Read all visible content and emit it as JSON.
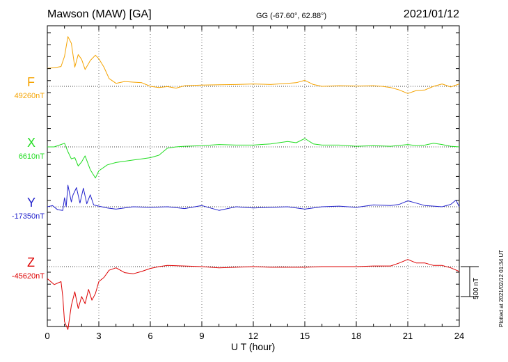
{
  "header": {
    "station": "Mawson (MAW)  [GA]",
    "coords": "GG (-67.60°,  62.88°)",
    "date": "2021/01/12"
  },
  "xlabel": "U T (hour)",
  "scale_label": "500 nT",
  "plotted_note": "Plotted at 2021/02/12 01:34 UT",
  "chart_data": {
    "type": "line",
    "title": "Mawson (MAW)  [GA]",
    "xlabel": "U T (hour)",
    "ylabel": "",
    "xlim": [
      0,
      24
    ],
    "xticks": [
      0,
      3,
      6,
      9,
      12,
      15,
      18,
      21,
      24
    ],
    "grid": true,
    "scale_bar_nT": 500,
    "series": [
      {
        "name": "F",
        "baseline_label": "49260nT",
        "color": "#f5a300",
        "x": [
          0,
          0.4,
          0.8,
          1.0,
          1.2,
          1.4,
          1.6,
          1.8,
          2.0,
          2.2,
          2.5,
          2.8,
          3.0,
          3.3,
          3.6,
          4.0,
          4.5,
          5.0,
          5.5,
          6.0,
          6.5,
          7.0,
          7.5,
          8.0,
          9.0,
          10.0,
          11.0,
          12.0,
          13.0,
          14.0,
          14.5,
          15.0,
          15.5,
          16.0,
          17.0,
          18.0,
          19.0,
          19.5,
          20.0,
          20.5,
          21.0,
          21.5,
          22.0,
          22.5,
          23.0,
          23.5,
          24.0
        ],
        "values": [
          300,
          310,
          330,
          500,
          830,
          720,
          320,
          530,
          450,
          280,
          430,
          520,
          460,
          320,
          130,
          50,
          80,
          70,
          60,
          0,
          -20,
          -5,
          -30,
          10,
          20,
          25,
          30,
          40,
          30,
          50,
          60,
          100,
          30,
          0,
          10,
          5,
          10,
          0,
          -20,
          -60,
          -120,
          -70,
          -60,
          0,
          40,
          -10,
          40
        ]
      },
      {
        "name": "X",
        "baseline_label": "6610nT",
        "color": "#22dd22",
        "x": [
          0,
          0.4,
          0.8,
          1.0,
          1.2,
          1.4,
          1.6,
          1.8,
          2.0,
          2.2,
          2.5,
          2.8,
          3.0,
          3.5,
          4.0,
          4.5,
          5.0,
          5.5,
          6.0,
          6.5,
          7.0,
          7.5,
          8.0,
          9.0,
          10.0,
          11.0,
          12.0,
          13.0,
          14.0,
          14.5,
          15.0,
          15.5,
          16.0,
          17.0,
          18.0,
          19.0,
          20.0,
          21.0,
          21.5,
          22.0,
          22.5,
          23.0,
          23.5,
          24.0
        ],
        "values": [
          0,
          0,
          40,
          60,
          -80,
          -200,
          -180,
          -320,
          -250,
          -150,
          -380,
          -520,
          -400,
          -300,
          -260,
          -240,
          -220,
          -200,
          -180,
          -140,
          -20,
          0,
          10,
          20,
          40,
          30,
          30,
          50,
          90,
          70,
          140,
          50,
          30,
          30,
          10,
          20,
          10,
          40,
          20,
          30,
          60,
          40,
          10,
          0
        ]
      },
      {
        "name": "Y",
        "baseline_label": "-17350nT",
        "color": "#2222cc",
        "x": [
          0,
          0.3,
          0.6,
          0.9,
          1.0,
          1.1,
          1.2,
          1.4,
          1.5,
          1.7,
          1.9,
          2.1,
          2.3,
          2.5,
          2.7,
          3.0,
          3.5,
          4.0,
          5.0,
          6.0,
          7.0,
          8.0,
          9.0,
          10.0,
          11.0,
          12.0,
          13.0,
          14.0,
          15.0,
          16.0,
          17.0,
          18.0,
          19.0,
          20.0,
          20.5,
          21.0,
          21.5,
          22.0,
          23.0,
          23.5,
          23.8,
          24.0
        ],
        "values": [
          0,
          20,
          -50,
          -60,
          150,
          0,
          360,
          80,
          200,
          320,
          60,
          310,
          50,
          200,
          30,
          10,
          -20,
          -40,
          0,
          -10,
          0,
          -30,
          20,
          -60,
          0,
          -20,
          -10,
          0,
          -40,
          0,
          10,
          -10,
          30,
          20,
          40,
          100,
          60,
          20,
          0,
          40,
          110,
          0
        ]
      },
      {
        "name": "Z",
        "baseline_label": "-45620nT",
        "color": "#dd0000",
        "x": [
          0,
          0.4,
          0.8,
          0.9,
          1.0,
          1.2,
          1.4,
          1.6,
          1.8,
          2.0,
          2.2,
          2.4,
          2.6,
          2.8,
          3.0,
          3.3,
          3.6,
          4.0,
          4.5,
          5.0,
          5.5,
          6.0,
          6.5,
          7.0,
          8.0,
          9.0,
          10.0,
          11.0,
          12.0,
          13.0,
          14.0,
          15.0,
          16.0,
          17.0,
          18.0,
          19.0,
          20.0,
          20.5,
          21.0,
          21.5,
          22.0,
          22.5,
          23.0,
          23.5,
          24.0
        ],
        "values": [
          -200,
          -300,
          -250,
          -500,
          -920,
          -1050,
          -650,
          -420,
          -700,
          -500,
          -620,
          -380,
          -560,
          -450,
          -250,
          -180,
          -60,
          -20,
          -100,
          -120,
          -80,
          -30,
          0,
          20,
          10,
          0,
          -20,
          -10,
          0,
          -10,
          -10,
          -10,
          0,
          0,
          0,
          10,
          10,
          60,
          120,
          60,
          60,
          20,
          20,
          -20,
          -80
        ]
      }
    ]
  }
}
